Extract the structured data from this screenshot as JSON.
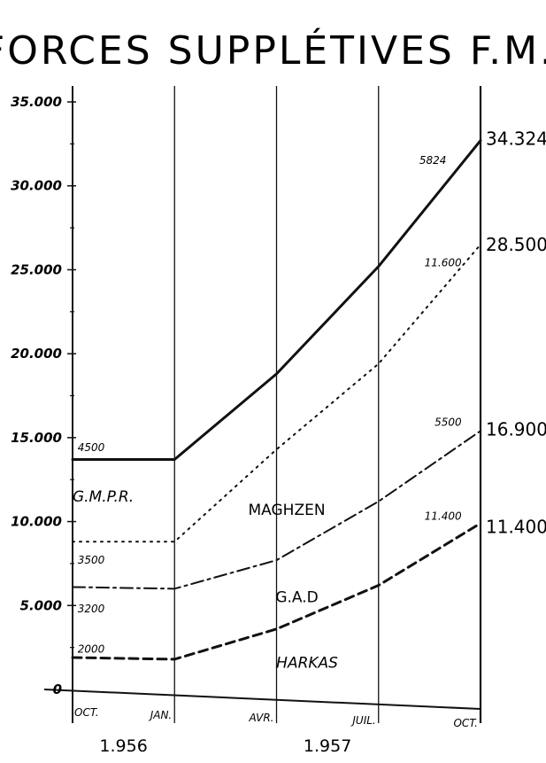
{
  "chart_data": {
    "type": "line",
    "title": "FORCES SUPPLÉTIVES F.M.A",
    "categories": [
      "OCT.",
      "JAN.",
      "AVR.",
      "JUIL.",
      "OCT."
    ],
    "years": [
      {
        "label": "1.956",
        "from": 0,
        "to": 1
      },
      {
        "label": "1.957",
        "from": 1,
        "to": 4
      }
    ],
    "ylim": [
      0,
      35000
    ],
    "yticks": [
      0,
      5000,
      10000,
      15000,
      20000,
      25000,
      30000,
      35000
    ],
    "ytick_labels": [
      "0",
      "5.000",
      "10.000",
      "15.000",
      "20.000",
      "25.000",
      "30.000",
      "35.000"
    ],
    "series": [
      {
        "key": "gmpr",
        "style": "solid",
        "values": [
          13700,
          13700,
          18800,
          25200,
          32700
        ]
      },
      {
        "key": "maghzen",
        "style": "dotted",
        "values": [
          8800,
          8800,
          14300,
          19400,
          26500
        ]
      },
      {
        "key": "gad",
        "style": "dashdot",
        "values": [
          6100,
          6000,
          7700,
          11200,
          15400
        ]
      },
      {
        "key": "harkas",
        "style": "dashed",
        "values": [
          1900,
          1800,
          3600,
          6200,
          9900
        ]
      }
    ],
    "regions": [
      {
        "label": "G.M.P.R.",
        "x": 0.3,
        "y": 11200
      },
      {
        "label": "MAGHZEN",
        "x": 2.1,
        "y": 10400
      },
      {
        "label": "G.A.D",
        "x": 2.2,
        "y": 5200
      },
      {
        "label": "HARKAS",
        "x": 2.3,
        "y": 1300
      }
    ],
    "start_labels": [
      {
        "text": "4500",
        "x": 0.05,
        "y": 14200
      },
      {
        "text": "3500",
        "x": 0.05,
        "y": 7500
      },
      {
        "text": "3200",
        "x": 0.05,
        "y": 4600
      },
      {
        "text": "2000",
        "x": 0.05,
        "y": 2200
      }
    ],
    "end_labels": [
      {
        "text": "5824",
        "x": 3.4,
        "y": 31300
      },
      {
        "text": "11.600",
        "x": 3.45,
        "y": 25200
      },
      {
        "text": "5500",
        "x": 3.55,
        "y": 15700
      },
      {
        "text": "11.400",
        "x": 3.45,
        "y": 10100
      }
    ],
    "totals": [
      {
        "text": "34.324",
        "y": 32800
      },
      {
        "text": "28.500",
        "y": 26500
      },
      {
        "text": "16.900",
        "y": 15500
      },
      {
        "text": "11.400",
        "y": 9700
      }
    ]
  }
}
